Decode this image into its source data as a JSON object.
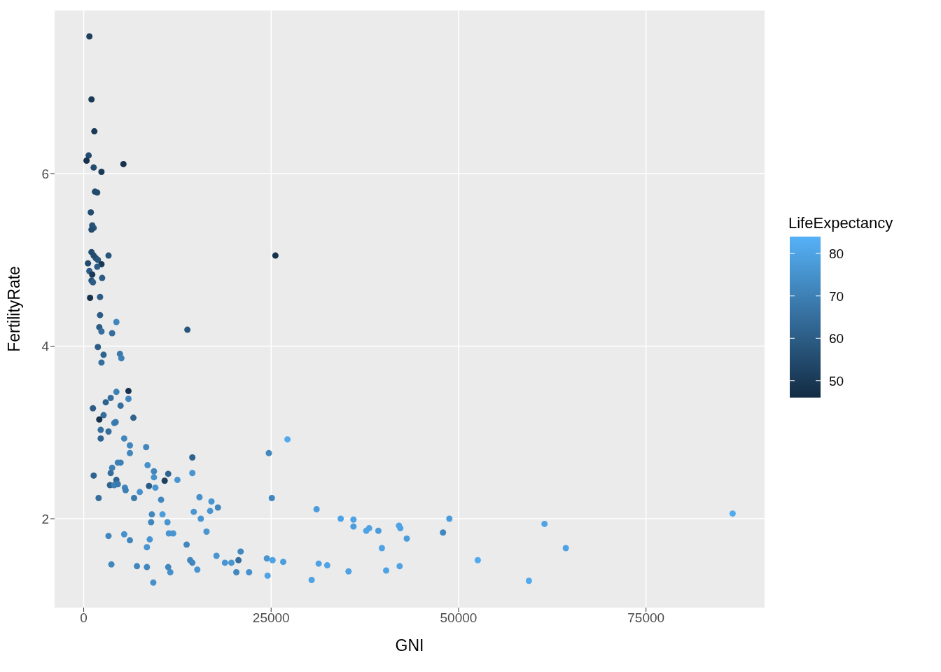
{
  "chart_data": {
    "type": "scatter",
    "xlabel": "GNI",
    "ylabel": "FertilityRate",
    "clabel": "LifeExpectancy",
    "xlim": [
      -3880,
      90810
    ],
    "ylim": [
      0.97,
      7.89
    ],
    "xticks": [
      0,
      25000,
      50000,
      75000
    ],
    "yticks": [
      2,
      4,
      6
    ],
    "grid": true,
    "marker": "circle",
    "clim": [
      46,
      84
    ],
    "cticks": [
      50,
      60,
      70,
      80
    ],
    "x": [
      760,
      1040,
      1420,
      660,
      380,
      1330,
      2370,
      5300,
      1500,
      1800,
      950,
      1140,
      1330,
      1040,
      1040,
      1330,
      3310,
      1610,
      1890,
      570,
      2370,
      1800,
      760,
      1140,
      2460,
      1040,
      1230,
      850,
      2180,
      2180,
      4360,
      2080,
      2370,
      3790,
      13830,
      1890,
      2650,
      4830,
      5020,
      2370,
      5970,
      4360,
      3600,
      2940,
      5970,
      4920,
      1230,
      6630,
      2650,
      2080,
      4080,
      4260,
      2270,
      3310,
      2270,
      5400,
      6160,
      8330,
      6160,
      14490,
      4550,
      4920,
      3790,
      8520,
      9370,
      11270,
      14490,
      1330,
      3600,
      9370,
      4360,
      10800,
      12500,
      4360,
      3500,
      4070,
      4550,
      8710,
      5490,
      9560,
      5590,
      7480,
      6720,
      1990,
      15440,
      17040,
      10320,
      25090,
      31060,
      17900,
      16860,
      14680,
      9090,
      10510,
      15620,
      8990,
      11170,
      34280,
      35980,
      35980,
      38070,
      37690,
      39300,
      42230,
      42050,
      48770,
      47920,
      43090,
      61460,
      86550,
      64300,
      52560,
      59380,
      39770,
      40340,
      42140,
      16380,
      13730,
      17710,
      14200,
      14490,
      18840,
      19700,
      20640,
      20930,
      15150,
      20360,
      22060,
      24430,
      25190,
      26610,
      24530,
      24690,
      27180,
      31340,
      32480,
      35320,
      30400,
      9280,
      11550,
      11270,
      7100,
      8430,
      3690,
      3310,
      5400,
      6160,
      8430,
      8810,
      11360,
      11930,
      25570
    ],
    "values": [
      7.59,
      6.86,
      6.49,
      6.21,
      6.15,
      6.07,
      6.02,
      6.11,
      5.79,
      5.78,
      5.55,
      5.4,
      5.37,
      5.35,
      5.09,
      5.05,
      5.05,
      5.02,
      5.0,
      4.96,
      4.95,
      4.92,
      4.87,
      4.83,
      4.79,
      4.76,
      4.74,
      4.56,
      4.57,
      4.36,
      4.28,
      4.22,
      4.17,
      4.15,
      4.19,
      3.99,
      3.9,
      3.91,
      3.86,
      3.81,
      3.48,
      3.47,
      3.4,
      3.35,
      3.39,
      3.31,
      3.28,
      3.17,
      3.2,
      3.15,
      3.11,
      3.12,
      3.03,
      3.01,
      2.93,
      2.93,
      2.85,
      2.83,
      2.76,
      2.71,
      2.65,
      2.65,
      2.59,
      2.62,
      2.55,
      2.52,
      2.53,
      2.5,
      2.53,
      2.48,
      2.45,
      2.44,
      2.45,
      2.41,
      2.39,
      2.39,
      2.4,
      2.38,
      2.36,
      2.36,
      2.33,
      2.31,
      2.24,
      2.24,
      2.25,
      2.2,
      2.22,
      2.24,
      2.11,
      2.13,
      2.09,
      2.08,
      2.05,
      2.05,
      2.0,
      1.96,
      1.96,
      2.0,
      1.99,
      1.91,
      1.89,
      1.86,
      1.86,
      1.89,
      1.92,
      2.0,
      1.84,
      1.77,
      1.94,
      2.06,
      1.66,
      1.52,
      1.28,
      1.66,
      1.4,
      1.45,
      1.85,
      1.7,
      1.57,
      1.52,
      1.49,
      1.49,
      1.49,
      1.52,
      1.62,
      1.41,
      1.38,
      1.38,
      1.54,
      1.52,
      1.5,
      1.34,
      2.76,
      2.92,
      1.48,
      1.46,
      1.39,
      1.29,
      1.26,
      1.38,
      1.44,
      1.45,
      1.44,
      1.47,
      1.8,
      1.82,
      1.75,
      1.67,
      1.76,
      1.83,
      1.83,
      5.05
    ],
    "cvalues": [
      52,
      50,
      50,
      55,
      48,
      55,
      50,
      48,
      55,
      55,
      55,
      57,
      58,
      55,
      55,
      55,
      58,
      55,
      58,
      55,
      50,
      60,
      60,
      50,
      60,
      57,
      60,
      48,
      60,
      60,
      72,
      60,
      65,
      65,
      58,
      60,
      62,
      68,
      70,
      65,
      48,
      70,
      65,
      62,
      72,
      65,
      60,
      62,
      65,
      48,
      70,
      68,
      65,
      65,
      62,
      72,
      72,
      72,
      72,
      62,
      70,
      70,
      70,
      75,
      72,
      62,
      76,
      62,
      65,
      75,
      62,
      52,
      76,
      65,
      62,
      70,
      68,
      60,
      72,
      76,
      70,
      75,
      68,
      65,
      75,
      76,
      72,
      72,
      78,
      72,
      76,
      76,
      72,
      78,
      76,
      72,
      76,
      80,
      80,
      78,
      80,
      80,
      78,
      80,
      80,
      78,
      72,
      78,
      80,
      82,
      80,
      82,
      82,
      80,
      80,
      80,
      76,
      72,
      76,
      72,
      72,
      76,
      76,
      65,
      72,
      76,
      72,
      75,
      76,
      80,
      78,
      80,
      72,
      82,
      80,
      80,
      80,
      80,
      75,
      75,
      72,
      72,
      72,
      72,
      72,
      75,
      72,
      76,
      76,
      76,
      76,
      48
    ]
  }
}
